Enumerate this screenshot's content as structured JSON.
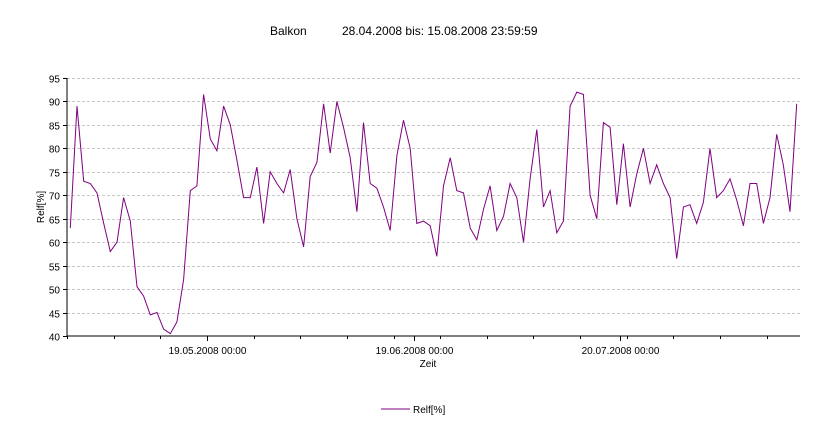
{
  "header": {
    "location": "Balkon",
    "range": "28.04.2008 bis: 15.08.2008 23:59:59"
  },
  "chart_data": {
    "type": "line",
    "xlabel": "Zeit",
    "ylabel": "Relf[%]",
    "ylim": [
      40,
      95
    ],
    "yticks": [
      40,
      45,
      50,
      55,
      60,
      65,
      70,
      75,
      80,
      85,
      90,
      95
    ],
    "xlim": [
      "28.04.2008",
      "15.08.2008"
    ],
    "xtick_labels": [
      "19.05.2008 00:00",
      "19.06.2008 00:00",
      "20.07.2008 00:00"
    ],
    "grid": true,
    "legend": "bottom-center",
    "series": [
      {
        "name": "Relf[%]",
        "color": "#800080",
        "x": [
          "28.04.2008",
          "29.04.2008",
          "30.04.2008",
          "01.05.2008",
          "02.05.2008",
          "03.05.2008",
          "04.05.2008",
          "05.05.2008",
          "06.05.2008",
          "07.05.2008",
          "08.05.2008",
          "09.05.2008",
          "10.05.2008",
          "11.05.2008",
          "12.05.2008",
          "13.05.2008",
          "14.05.2008",
          "15.05.2008",
          "16.05.2008",
          "17.05.2008",
          "18.05.2008",
          "19.05.2008",
          "20.05.2008",
          "21.05.2008",
          "22.05.2008",
          "23.05.2008",
          "24.05.2008",
          "25.05.2008",
          "26.05.2008",
          "27.05.2008",
          "28.05.2008",
          "29.05.2008",
          "30.05.2008",
          "31.05.2008",
          "01.06.2008",
          "02.06.2008",
          "03.06.2008",
          "04.06.2008",
          "05.06.2008",
          "06.06.2008",
          "07.06.2008",
          "08.06.2008",
          "09.06.2008",
          "10.06.2008",
          "11.06.2008",
          "12.06.2008",
          "13.06.2008",
          "14.06.2008",
          "15.06.2008",
          "16.06.2008",
          "17.06.2008",
          "18.06.2008",
          "19.06.2008",
          "20.06.2008",
          "21.06.2008",
          "22.06.2008",
          "23.06.2008",
          "24.06.2008",
          "25.06.2008",
          "26.06.2008",
          "27.06.2008",
          "28.06.2008",
          "29.06.2008",
          "30.06.2008",
          "01.07.2008",
          "02.07.2008",
          "03.07.2008",
          "04.07.2008",
          "05.07.2008",
          "06.07.2008",
          "07.07.2008",
          "08.07.2008",
          "09.07.2008",
          "10.07.2008",
          "11.07.2008",
          "12.07.2008",
          "13.07.2008",
          "14.07.2008",
          "15.07.2008",
          "16.07.2008",
          "17.07.2008",
          "18.07.2008",
          "19.07.2008",
          "20.07.2008",
          "21.07.2008",
          "22.07.2008",
          "23.07.2008",
          "24.07.2008",
          "25.07.2008",
          "26.07.2008",
          "27.07.2008",
          "28.07.2008",
          "29.07.2008",
          "30.07.2008",
          "31.07.2008",
          "01.08.2008",
          "02.08.2008",
          "03.08.2008",
          "04.08.2008",
          "05.08.2008",
          "06.08.2008",
          "07.08.2008",
          "08.08.2008",
          "09.08.2008",
          "10.08.2008",
          "11.08.2008",
          "12.08.2008",
          "13.08.2008",
          "14.08.2008",
          "15.08.2008"
        ],
        "values": [
          63,
          89,
          73,
          72.5,
          70.5,
          64,
          58,
          60,
          69.5,
          64.5,
          50.5,
          48.5,
          44.5,
          45,
          41.5,
          40.5,
          43,
          52,
          71,
          72,
          91.5,
          82,
          79.5,
          89,
          85,
          77.5,
          69.5,
          69.5,
          76,
          64,
          75,
          72.5,
          70.5,
          75.5,
          65,
          59,
          74,
          77,
          89.5,
          79,
          90,
          84.5,
          78,
          66.5,
          85.5,
          72.5,
          71.5,
          67.5,
          62.5,
          78.5,
          86,
          80,
          64,
          64.5,
          63.5,
          57,
          72,
          78,
          71,
          70.5,
          63,
          60.5,
          67,
          72,
          62.5,
          65.5,
          72.5,
          69.5,
          60,
          73.5,
          84,
          67.5,
          71,
          62,
          64.5,
          89,
          92,
          91.5,
          70,
          65,
          85.5,
          84.5,
          68,
          81,
          67.5,
          74.5,
          80,
          72.5,
          76.5,
          72.5,
          69.5,
          56.5,
          67.5,
          68,
          64,
          68.5,
          80,
          69.5,
          71,
          73.5,
          69,
          63.5,
          72.5,
          72.5,
          64,
          69.5,
          83,
          76.5,
          66.5,
          89.5
        ]
      }
    ]
  }
}
